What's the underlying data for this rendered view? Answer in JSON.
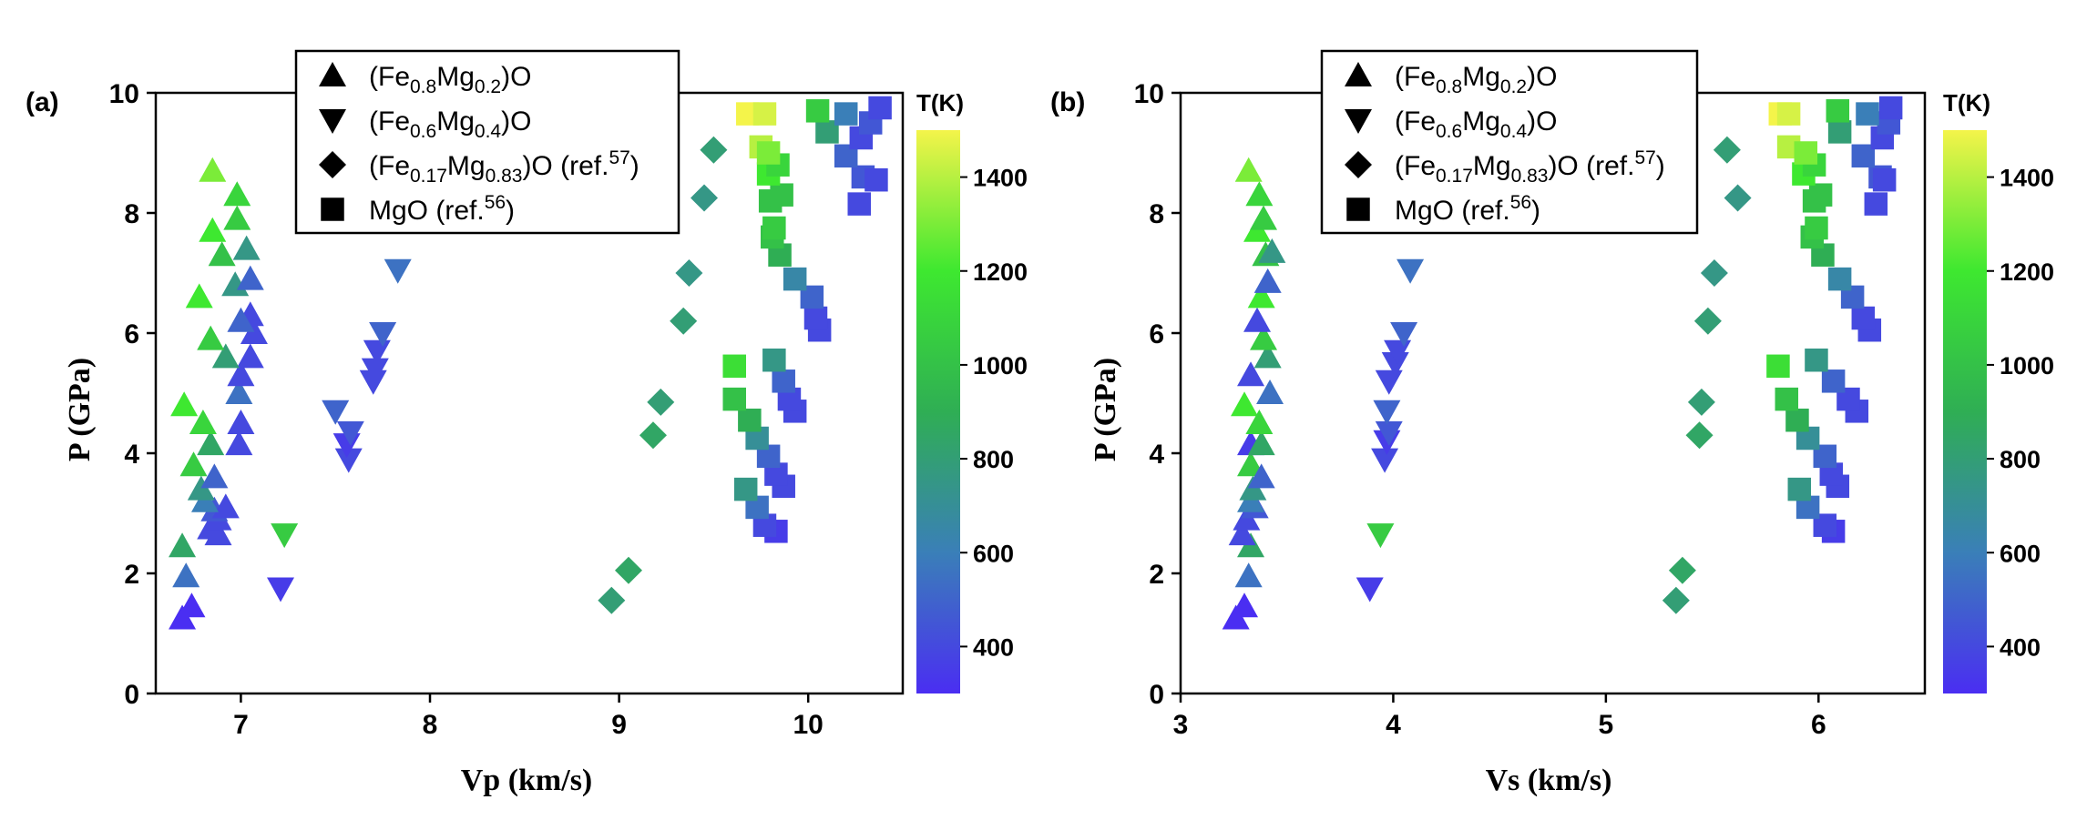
{
  "figure": {
    "panels": [
      {
        "panel_label": "(a)",
        "xlabel": "Vp (km/s)",
        "ylabel": "P (GPa)"
      },
      {
        "panel_label": "(b)",
        "xlabel": "Vs (km/s)",
        "ylabel": "P (GPa)"
      }
    ],
    "legend": {
      "entries": [
        {
          "marker": "triangle-up",
          "pre": "(Fe",
          "sub1": "0.8",
          "mid": "Mg",
          "sub2": "0.2",
          "post": ")O",
          "ref": "",
          "sup": "",
          "tail": ""
        },
        {
          "marker": "triangle-down",
          "pre": "(Fe",
          "sub1": "0.6",
          "mid": "Mg",
          "sub2": "0.4",
          "post": ")O",
          "ref": "",
          "sup": "",
          "tail": ""
        },
        {
          "marker": "diamond",
          "pre": "(Fe",
          "sub1": "0.17",
          "mid": "Mg",
          "sub2": "0.83",
          "post": ")O",
          "ref": " (ref.",
          "sup": "57",
          "tail": ")"
        },
        {
          "marker": "square",
          "pre": "MgO",
          "sub1": "",
          "mid": "",
          "sub2": "",
          "post": "",
          "ref": " (ref.",
          "sup": "56",
          "tail": ")"
        }
      ],
      "placement": "top-left, above plot"
    },
    "colorbar": {
      "title": "T(K)",
      "range": [
        300,
        1500
      ],
      "ticks": [
        "400",
        "600",
        "800",
        "1000",
        "1200",
        "1400"
      ],
      "colors": {
        "low": "#4a2ef2",
        "mid_low": "#3a7fb8",
        "mid": "#2fae54",
        "mid_high": "#3ee830",
        "high": "#f4f44a"
      }
    }
  },
  "chart_data": [
    {
      "type": "scatter",
      "xlabel": "Vp (km/s)",
      "ylabel": "P (GPa)",
      "xlim": [
        6.55,
        10.5
      ],
      "ylim": [
        0,
        10
      ],
      "xticks": [
        7,
        8,
        9,
        10
      ],
      "yticks": [
        0,
        2,
        4,
        6,
        8,
        10
      ],
      "grid": false,
      "colorscale": "T(K) 300–1500",
      "series": [
        {
          "name": "(Fe0.8Mg0.2)O",
          "marker": "triangle-up",
          "points": [
            [
              6.69,
              1.25,
              300
            ],
            [
              6.74,
              1.45,
              300
            ],
            [
              6.71,
              1.95,
              550
            ],
            [
              6.69,
              2.45,
              850
            ],
            [
              6.88,
              2.65,
              400
            ],
            [
              6.84,
              2.75,
              400
            ],
            [
              6.88,
              2.9,
              400
            ],
            [
              6.86,
              3.05,
              450
            ],
            [
              6.92,
              3.1,
              400
            ],
            [
              6.81,
              3.2,
              600
            ],
            [
              6.79,
              3.4,
              750
            ],
            [
              6.75,
              3.8,
              1050
            ],
            [
              6.86,
              3.6,
              500
            ],
            [
              6.84,
              4.15,
              850
            ],
            [
              6.99,
              4.15,
              400
            ],
            [
              7.0,
              4.5,
              400
            ],
            [
              6.8,
              4.5,
              1100
            ],
            [
              6.7,
              4.8,
              1200
            ],
            [
              6.99,
              5.0,
              550
            ],
            [
              7.0,
              5.3,
              400
            ],
            [
              7.05,
              5.6,
              400
            ],
            [
              6.92,
              5.6,
              800
            ],
            [
              6.84,
              5.9,
              1050
            ],
            [
              7.07,
              6.0,
              400
            ],
            [
              7.05,
              6.3,
              400
            ],
            [
              7.0,
              6.2,
              500
            ],
            [
              6.78,
              6.6,
              1200
            ],
            [
              6.97,
              6.8,
              750
            ],
            [
              7.05,
              6.9,
              500
            ],
            [
              6.9,
              7.3,
              1000
            ],
            [
              7.03,
              7.4,
              750
            ],
            [
              6.85,
              7.7,
              1200
            ],
            [
              6.98,
              7.9,
              1050
            ],
            [
              6.98,
              8.3,
              1100
            ],
            [
              6.85,
              8.7,
              1300
            ]
          ]
        },
        {
          "name": "(Fe0.6Mg0.4)O",
          "marker": "triangle-down",
          "points": [
            [
              7.21,
              1.75,
              350
            ],
            [
              7.23,
              2.65,
              1050
            ],
            [
              7.57,
              3.9,
              400
            ],
            [
              7.56,
              4.15,
              350
            ],
            [
              7.58,
              4.35,
              450
            ],
            [
              7.5,
              4.7,
              500
            ],
            [
              7.7,
              5.2,
              400
            ],
            [
              7.71,
              5.4,
              400
            ],
            [
              7.72,
              5.7,
              400
            ],
            [
              7.75,
              6.0,
              500
            ],
            [
              7.83,
              7.05,
              550
            ]
          ]
        },
        {
          "name": "(Fe0.17Mg0.83)O (ref.57)",
          "marker": "diamond",
          "points": [
            [
              8.96,
              1.55,
              800
            ],
            [
              9.05,
              2.05,
              850
            ],
            [
              9.18,
              4.3,
              850
            ],
            [
              9.22,
              4.85,
              800
            ],
            [
              9.34,
              6.2,
              800
            ],
            [
              9.37,
              7.0,
              750
            ],
            [
              9.45,
              8.25,
              750
            ],
            [
              9.5,
              9.05,
              800
            ]
          ]
        },
        {
          "name": "MgO (ref.56)",
          "marker": "square",
          "points": [
            [
              9.83,
              2.7,
              350
            ],
            [
              9.77,
              2.8,
              400
            ],
            [
              9.73,
              3.1,
              550
            ],
            [
              9.87,
              3.45,
              400
            ],
            [
              9.67,
              3.4,
              750
            ],
            [
              9.83,
              3.65,
              400
            ],
            [
              9.79,
              3.95,
              500
            ],
            [
              9.73,
              4.25,
              700
            ],
            [
              9.69,
              4.55,
              900
            ],
            [
              9.61,
              4.9,
              1000
            ],
            [
              9.61,
              5.45,
              1150
            ],
            [
              9.93,
              4.7,
              400
            ],
            [
              9.9,
              4.9,
              400
            ],
            [
              9.87,
              5.2,
              500
            ],
            [
              9.82,
              5.55,
              750
            ],
            [
              10.06,
              6.05,
              400
            ],
            [
              10.04,
              6.25,
              400
            ],
            [
              10.02,
              6.6,
              500
            ],
            [
              9.93,
              6.9,
              650
            ],
            [
              9.85,
              7.3,
              900
            ],
            [
              9.81,
              7.6,
              1000
            ],
            [
              9.82,
              7.75,
              1050
            ],
            [
              9.8,
              8.2,
              1000
            ],
            [
              9.86,
              8.3,
              1000
            ],
            [
              9.79,
              8.65,
              1200
            ],
            [
              9.84,
              8.8,
              1100
            ],
            [
              9.75,
              9.1,
              1400
            ],
            [
              9.79,
              9.0,
              1300
            ],
            [
              9.68,
              9.65,
              1500
            ],
            [
              9.77,
              9.65,
              1450
            ],
            [
              10.1,
              9.35,
              800
            ],
            [
              10.05,
              9.7,
              1050
            ],
            [
              10.27,
              8.15,
              400
            ],
            [
              10.29,
              8.6,
              450
            ],
            [
              10.36,
              8.55,
              400
            ],
            [
              10.2,
              8.95,
              500
            ],
            [
              10.28,
              9.25,
              400
            ],
            [
              10.33,
              9.5,
              450
            ],
            [
              10.2,
              9.65,
              600
            ],
            [
              10.38,
              9.75,
              400
            ]
          ]
        }
      ]
    },
    {
      "type": "scatter",
      "xlabel": "Vs (km/s)",
      "ylabel": "P (GPa)",
      "xlim": [
        3.0,
        6.5
      ],
      "ylim": [
        0,
        10
      ],
      "xticks": [
        3,
        4,
        5,
        6
      ],
      "yticks": [
        0,
        2,
        4,
        6,
        8,
        10
      ],
      "grid": false,
      "colorscale": "T(K) 300–1500",
      "series": [
        {
          "name": "(Fe0.8Mg0.2)O",
          "marker": "triangle-up",
          "points": [
            [
              3.26,
              1.25,
              300
            ],
            [
              3.3,
              1.45,
              300
            ],
            [
              3.32,
              1.95,
              550
            ],
            [
              3.33,
              2.45,
              850
            ],
            [
              3.29,
              2.65,
              400
            ],
            [
              3.31,
              2.9,
              400
            ],
            [
              3.35,
              3.1,
              450
            ],
            [
              3.33,
              3.2,
              600
            ],
            [
              3.34,
              3.4,
              750
            ],
            [
              3.33,
              3.8,
              1050
            ],
            [
              3.38,
              3.6,
              500
            ],
            [
              3.33,
              4.15,
              350
            ],
            [
              3.38,
              4.15,
              850
            ],
            [
              3.3,
              4.8,
              1200
            ],
            [
              3.37,
              4.5,
              1100
            ],
            [
              3.33,
              5.3,
              400
            ],
            [
              3.42,
              5.0,
              550
            ],
            [
              3.41,
              5.6,
              800
            ],
            [
              3.39,
              5.9,
              1050
            ],
            [
              3.36,
              6.2,
              400
            ],
            [
              3.38,
              6.6,
              1200
            ],
            [
              3.41,
              6.85,
              500
            ],
            [
              3.4,
              7.3,
              1000
            ],
            [
              3.43,
              7.35,
              750
            ],
            [
              3.36,
              7.7,
              1200
            ],
            [
              3.39,
              7.9,
              1050
            ],
            [
              3.37,
              8.3,
              1100
            ],
            [
              3.32,
              8.7,
              1300
            ]
          ]
        },
        {
          "name": "(Fe0.6Mg0.4)O",
          "marker": "triangle-down",
          "points": [
            [
              3.89,
              1.75,
              350
            ],
            [
              3.94,
              2.65,
              1050
            ],
            [
              3.96,
              3.9,
              400
            ],
            [
              3.97,
              4.2,
              350
            ],
            [
              3.98,
              4.35,
              450
            ],
            [
              3.97,
              4.7,
              500
            ],
            [
              3.98,
              5.2,
              400
            ],
            [
              4.01,
              5.5,
              400
            ],
            [
              4.02,
              5.7,
              400
            ],
            [
              4.05,
              6.0,
              500
            ],
            [
              4.08,
              7.05,
              550
            ]
          ]
        },
        {
          "name": "(Fe0.17Mg0.83)O (ref.57)",
          "marker": "diamond",
          "points": [
            [
              5.33,
              1.55,
              800
            ],
            [
              5.36,
              2.05,
              850
            ],
            [
              5.44,
              4.3,
              850
            ],
            [
              5.45,
              4.85,
              800
            ],
            [
              5.48,
              6.2,
              800
            ],
            [
              5.51,
              7.0,
              750
            ],
            [
              5.62,
              8.25,
              750
            ],
            [
              5.57,
              9.05,
              800
            ]
          ]
        },
        {
          "name": "MgO (ref.56)",
          "marker": "square",
          "points": [
            [
              6.07,
              2.7,
              350
            ],
            [
              6.03,
              2.8,
              400
            ],
            [
              5.95,
              3.1,
              550
            ],
            [
              6.09,
              3.45,
              400
            ],
            [
              5.91,
              3.4,
              750
            ],
            [
              6.06,
              3.65,
              400
            ],
            [
              6.03,
              3.95,
              500
            ],
            [
              5.95,
              4.25,
              700
            ],
            [
              5.9,
              4.55,
              900
            ],
            [
              5.85,
              4.9,
              1000
            ],
            [
              5.81,
              5.45,
              1150
            ],
            [
              6.18,
              4.7,
              400
            ],
            [
              6.14,
              4.9,
              400
            ],
            [
              6.07,
              5.2,
              500
            ],
            [
              5.99,
              5.55,
              750
            ],
            [
              6.24,
              6.05,
              400
            ],
            [
              6.21,
              6.25,
              400
            ],
            [
              6.16,
              6.6,
              500
            ],
            [
              6.1,
              6.9,
              650
            ],
            [
              6.02,
              7.3,
              900
            ],
            [
              5.97,
              7.6,
              1000
            ],
            [
              5.99,
              7.75,
              1050
            ],
            [
              5.98,
              8.2,
              1000
            ],
            [
              6.01,
              8.3,
              1000
            ],
            [
              5.93,
              8.65,
              1200
            ],
            [
              5.98,
              8.8,
              1100
            ],
            [
              5.86,
              9.1,
              1400
            ],
            [
              5.94,
              9.0,
              1300
            ],
            [
              5.82,
              9.65,
              1500
            ],
            [
              5.86,
              9.65,
              1450
            ],
            [
              6.1,
              9.35,
              800
            ],
            [
              6.09,
              9.7,
              1050
            ],
            [
              6.27,
              8.15,
              400
            ],
            [
              6.29,
              8.6,
              450
            ],
            [
              6.31,
              8.55,
              400
            ],
            [
              6.21,
              8.95,
              500
            ],
            [
              6.3,
              9.25,
              400
            ],
            [
              6.33,
              9.5,
              450
            ],
            [
              6.23,
              9.65,
              600
            ],
            [
              6.34,
              9.75,
              400
            ]
          ]
        }
      ]
    }
  ]
}
